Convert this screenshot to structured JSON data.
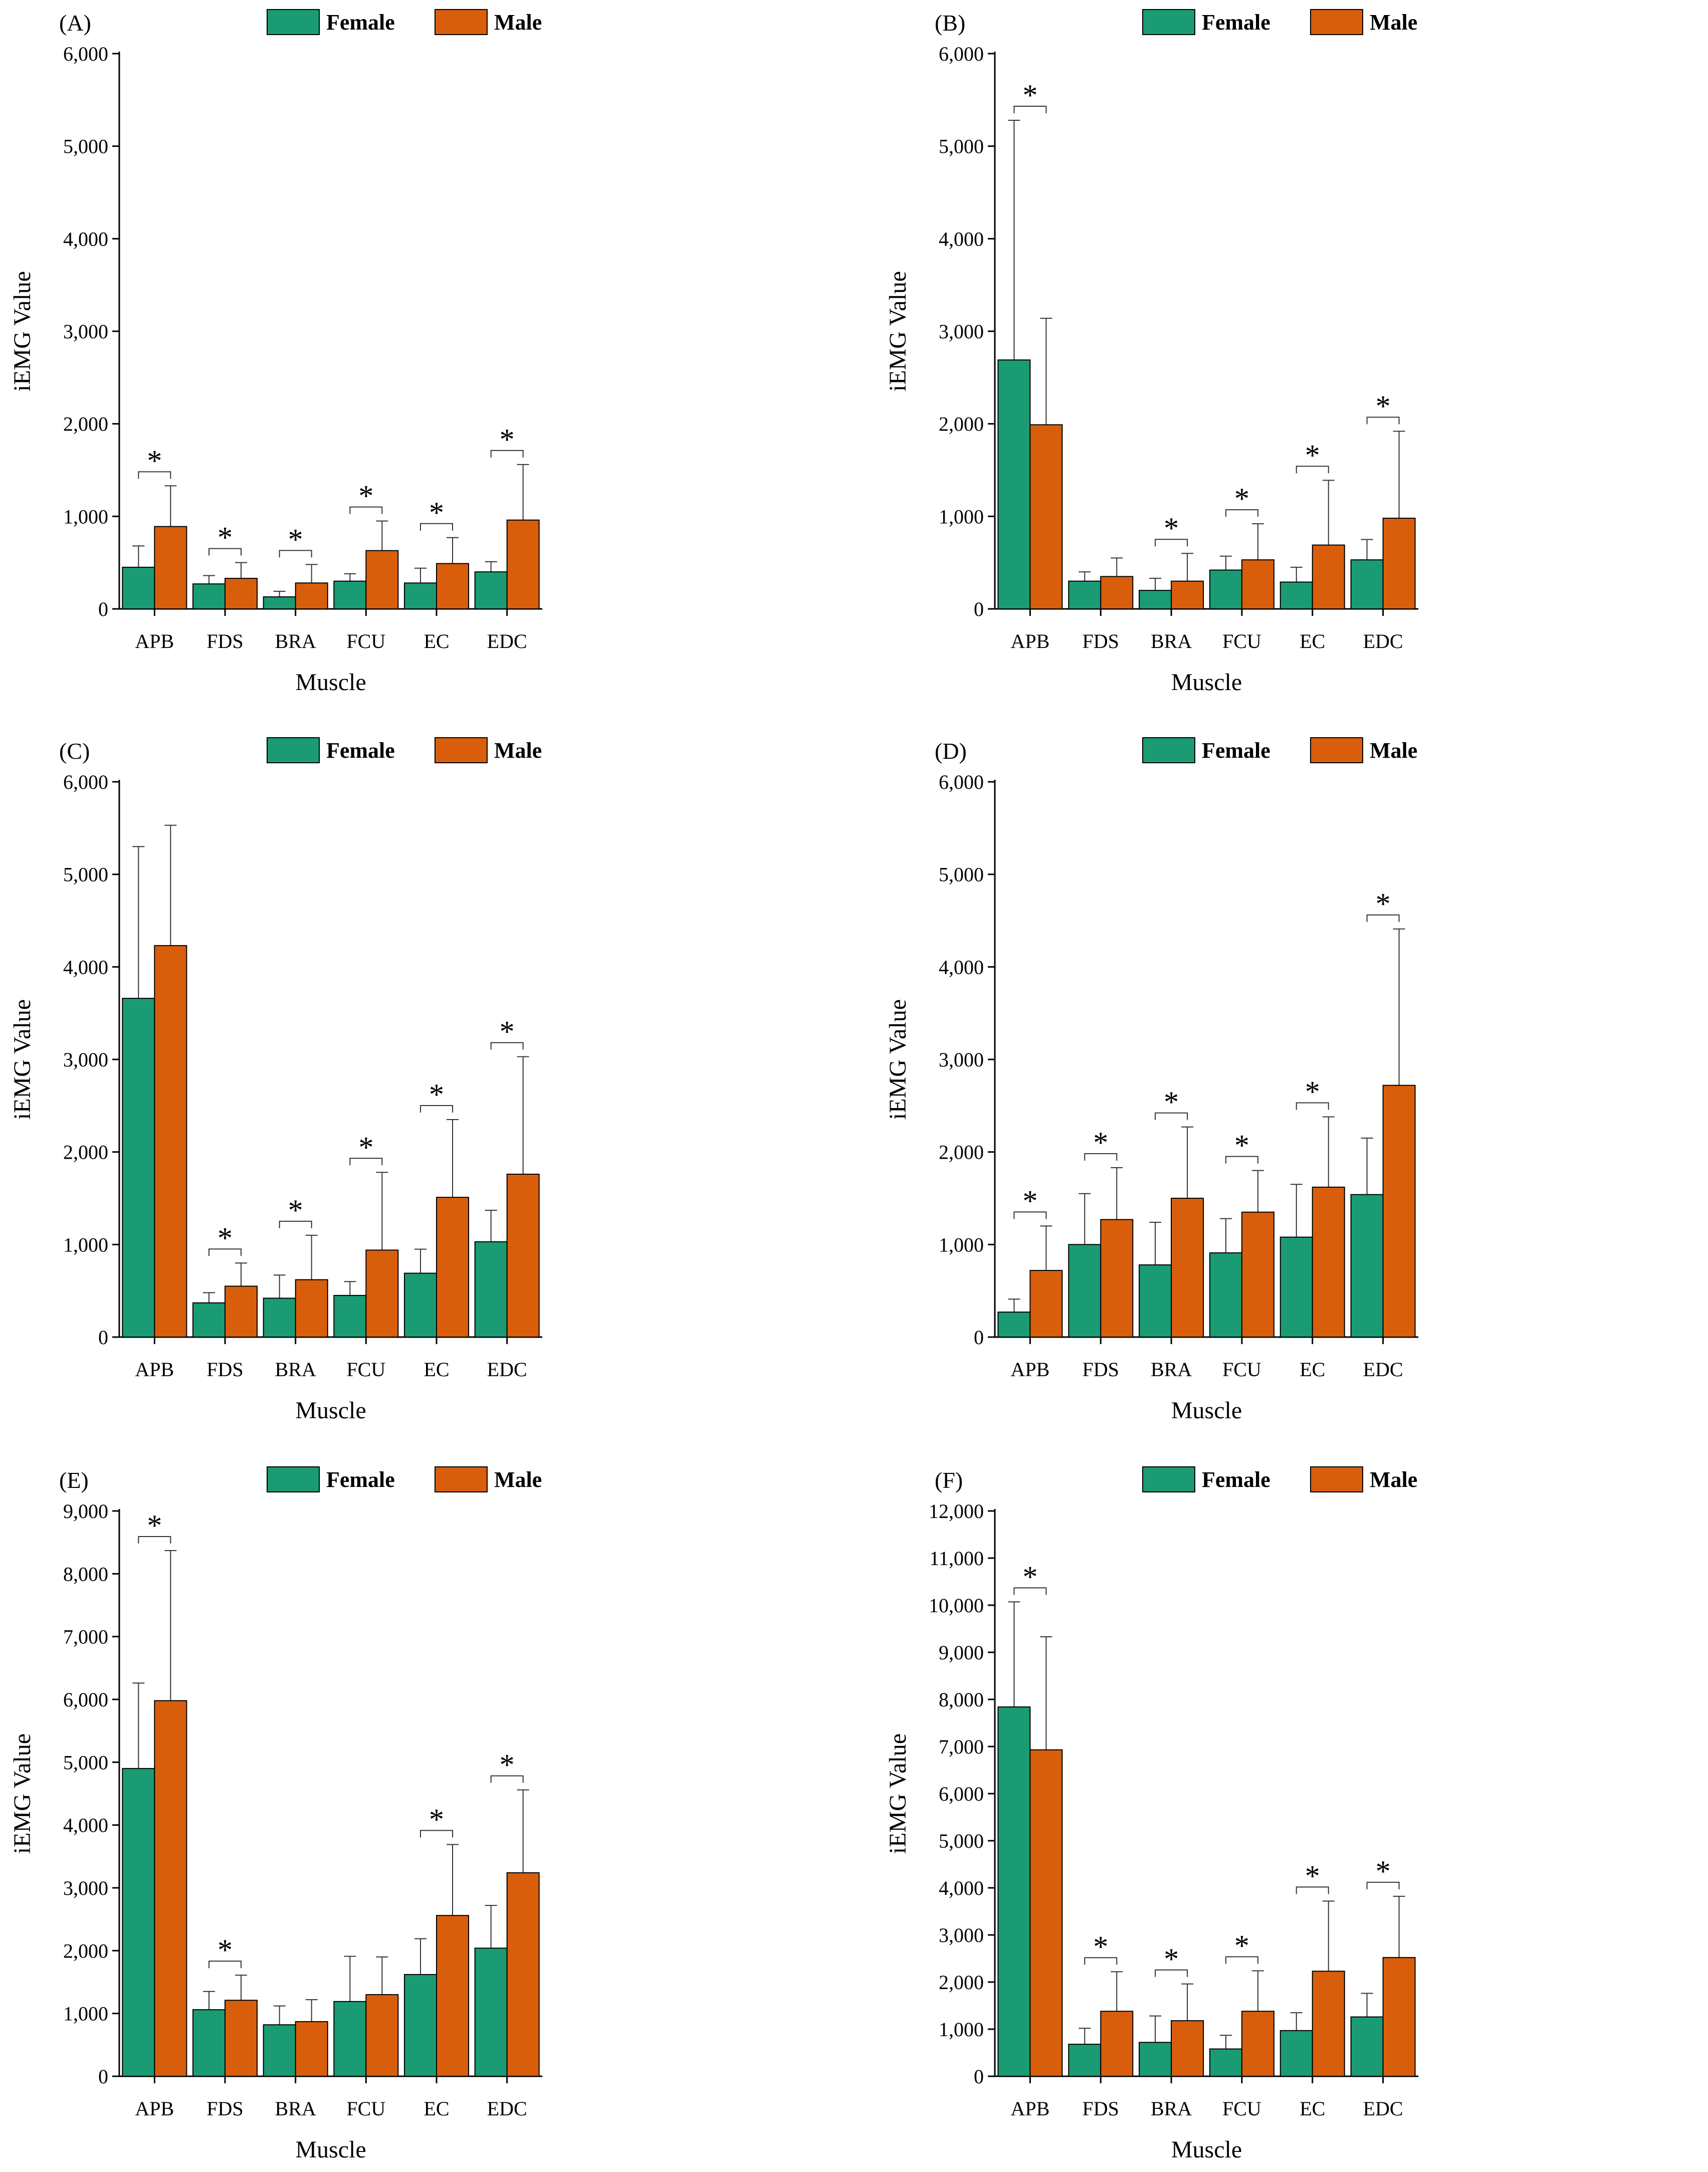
{
  "colors": {
    "female": "#1a9b73",
    "male": "#d85e0c",
    "axis": "#000000"
  },
  "legend": {
    "female": "Female",
    "male": "Male"
  },
  "chart_data": [
    {
      "type": "bar",
      "panel": "(A)",
      "categories": [
        "APB",
        "FDS",
        "BRA",
        "FCU",
        "EC",
        "EDC"
      ],
      "xlabel": "Muscle",
      "ylabel": "iEMG Value",
      "ylim": [
        0,
        6000
      ],
      "yticks": [
        0,
        1000,
        2000,
        3000,
        4000,
        5000,
        6000
      ],
      "ytick_labels": [
        "0",
        "1,000",
        "2,000",
        "3,000",
        "4,000",
        "5,000",
        "6,000"
      ],
      "series": [
        {
          "name": "Female",
          "values": [
            450,
            270,
            130,
            300,
            280,
            400
          ],
          "errors": [
            230,
            90,
            60,
            80,
            160,
            110
          ]
        },
        {
          "name": "Male",
          "values": [
            890,
            330,
            280,
            630,
            490,
            960
          ],
          "errors": [
            440,
            170,
            200,
            320,
            280,
            600
          ]
        }
      ],
      "significant": [
        true,
        true,
        true,
        true,
        true,
        true
      ],
      "sig_marker": "*"
    },
    {
      "type": "bar",
      "panel": "(B)",
      "categories": [
        "APB",
        "FDS",
        "BRA",
        "FCU",
        "EC",
        "EDC"
      ],
      "xlabel": "Muscle",
      "ylabel": "iEMG Value",
      "ylim": [
        0,
        6000
      ],
      "yticks": [
        0,
        1000,
        2000,
        3000,
        4000,
        5000,
        6000
      ],
      "ytick_labels": [
        "0",
        "1,000",
        "2,000",
        "3,000",
        "4,000",
        "5,000",
        "6,000"
      ],
      "series": [
        {
          "name": "Female",
          "values": [
            2690,
            300,
            200,
            420,
            290,
            530
          ],
          "errors": [
            2590,
            100,
            130,
            150,
            160,
            220
          ]
        },
        {
          "name": "Male",
          "values": [
            1990,
            350,
            300,
            530,
            690,
            980
          ],
          "errors": [
            1150,
            200,
            300,
            390,
            700,
            940
          ]
        }
      ],
      "significant": [
        true,
        false,
        true,
        true,
        true,
        true
      ],
      "sig_marker": "*"
    },
    {
      "type": "bar",
      "panel": "(C)",
      "categories": [
        "APB",
        "FDS",
        "BRA",
        "FCU",
        "EC",
        "EDC"
      ],
      "xlabel": "Muscle",
      "ylabel": "iEMG Value",
      "ylim": [
        0,
        6000
      ],
      "yticks": [
        0,
        1000,
        2000,
        3000,
        4000,
        5000,
        6000
      ],
      "ytick_labels": [
        "0",
        "1,000",
        "2,000",
        "3,000",
        "4,000",
        "5,000",
        "6,000"
      ],
      "series": [
        {
          "name": "Female",
          "values": [
            3660,
            370,
            420,
            450,
            690,
            1030
          ],
          "errors": [
            1640,
            110,
            250,
            150,
            260,
            340
          ]
        },
        {
          "name": "Male",
          "values": [
            4230,
            550,
            620,
            940,
            1510,
            1760
          ],
          "errors": [
            1300,
            250,
            480,
            840,
            840,
            1270
          ]
        }
      ],
      "significant": [
        false,
        true,
        true,
        true,
        true,
        true
      ],
      "sig_marker": "*"
    },
    {
      "type": "bar",
      "panel": "(D)",
      "categories": [
        "APB",
        "FDS",
        "BRA",
        "FCU",
        "EC",
        "EDC"
      ],
      "xlabel": "Muscle",
      "ylabel": "iEMG Value",
      "ylim": [
        0,
        6000
      ],
      "yticks": [
        0,
        1000,
        2000,
        3000,
        4000,
        5000,
        6000
      ],
      "ytick_labels": [
        "0",
        "1,000",
        "2,000",
        "3,000",
        "4,000",
        "5,000",
        "6,000"
      ],
      "series": [
        {
          "name": "Female",
          "values": [
            270,
            1000,
            780,
            910,
            1080,
            1540
          ],
          "errors": [
            140,
            550,
            460,
            370,
            570,
            610
          ]
        },
        {
          "name": "Male",
          "values": [
            720,
            1270,
            1500,
            1350,
            1620,
            2720
          ],
          "errors": [
            480,
            560,
            770,
            450,
            760,
            1690
          ]
        }
      ],
      "significant": [
        true,
        true,
        true,
        true,
        true,
        true
      ],
      "sig_marker": "*"
    },
    {
      "type": "bar",
      "panel": "(E)",
      "categories": [
        "APB",
        "FDS",
        "BRA",
        "FCU",
        "EC",
        "EDC"
      ],
      "xlabel": "Muscle",
      "ylabel": "iEMG Value",
      "ylim": [
        0,
        9000
      ],
      "yticks": [
        0,
        1000,
        2000,
        3000,
        4000,
        5000,
        6000,
        7000,
        8000,
        9000
      ],
      "ytick_labels": [
        "0",
        "1,000",
        "2,000",
        "3,000",
        "4,000",
        "5,000",
        "6,000",
        "7,000",
        "8,000",
        "9,000"
      ],
      "series": [
        {
          "name": "Female",
          "values": [
            4900,
            1060,
            820,
            1190,
            1620,
            2040
          ],
          "errors": [
            1360,
            290,
            300,
            720,
            570,
            680
          ]
        },
        {
          "name": "Male",
          "values": [
            5980,
            1210,
            870,
            1300,
            2560,
            3240
          ],
          "errors": [
            2390,
            400,
            350,
            600,
            1130,
            1320
          ]
        }
      ],
      "significant": [
        true,
        true,
        false,
        false,
        true,
        true
      ],
      "sig_marker": "*"
    },
    {
      "type": "bar",
      "panel": "(F)",
      "categories": [
        "APB",
        "FDS",
        "BRA",
        "FCU",
        "EC",
        "EDC"
      ],
      "xlabel": "Muscle",
      "ylabel": "iEMG Value",
      "ylim": [
        0,
        12000
      ],
      "yticks": [
        0,
        1000,
        2000,
        3000,
        4000,
        5000,
        6000,
        7000,
        8000,
        9000,
        10000,
        11000,
        12000
      ],
      "ytick_labels": [
        "0",
        "1,000",
        "2,000",
        "3,000",
        "4,000",
        "5,000",
        "6,000",
        "7,000",
        "8,000",
        "9,000",
        "10,000",
        "11,000",
        "12,000"
      ],
      "series": [
        {
          "name": "Female",
          "values": [
            7840,
            680,
            720,
            580,
            970,
            1260
          ],
          "errors": [
            2230,
            340,
            560,
            290,
            380,
            500
          ]
        },
        {
          "name": "Male",
          "values": [
            6930,
            1380,
            1180,
            1380,
            2230,
            2520
          ],
          "errors": [
            2400,
            840,
            780,
            860,
            1490,
            1300
          ]
        }
      ],
      "significant": [
        true,
        true,
        true,
        true,
        true,
        true
      ],
      "sig_marker": "*"
    }
  ]
}
